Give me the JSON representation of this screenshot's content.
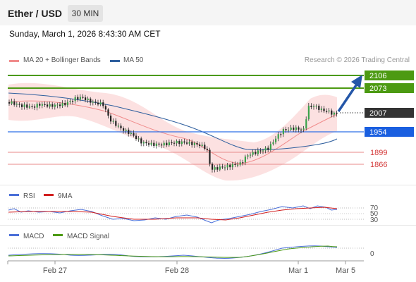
{
  "header": {
    "title": "Ether / USD",
    "timeframe": "30 MIN"
  },
  "datetime": "Sunday, March 1, 2026 8:43:30 AM CET",
  "legend": {
    "items": [
      {
        "label": "MA 20 + Bollinger Bands",
        "color": "#f08c8c"
      },
      {
        "label": "MA 50",
        "color": "#2f5f9e"
      }
    ],
    "copyright": "Research © 2026 Trading Central"
  },
  "levels": [
    {
      "value": "2106",
      "color": "#4c9a12",
      "style": "box"
    },
    {
      "value": "2073",
      "color": "#4c9a12",
      "style": "box"
    },
    {
      "value": "2007",
      "color": "#333333",
      "style": "box"
    },
    {
      "value": "1954",
      "color": "#1a5fe0",
      "style": "box"
    },
    {
      "value": "1899",
      "color": "#d43a3a",
      "style": "text"
    },
    {
      "value": "1866",
      "color": "#d43a3a",
      "style": "text"
    }
  ],
  "rsi": {
    "labels": [
      "RSI",
      "9MA"
    ],
    "colors": [
      "#4a6fd8",
      "#d11e1e"
    ],
    "ticks": [
      "70",
      "50",
      "30"
    ]
  },
  "macd": {
    "labels": [
      "MACD",
      "MACD Signal"
    ],
    "colors": [
      "#4a6fd8",
      "#4c9a12"
    ],
    "ticks": [
      "0"
    ]
  },
  "xaxis": {
    "labels": [
      "Feb 27",
      "Feb 28",
      "Mar 1",
      "Mar 5"
    ]
  }
}
